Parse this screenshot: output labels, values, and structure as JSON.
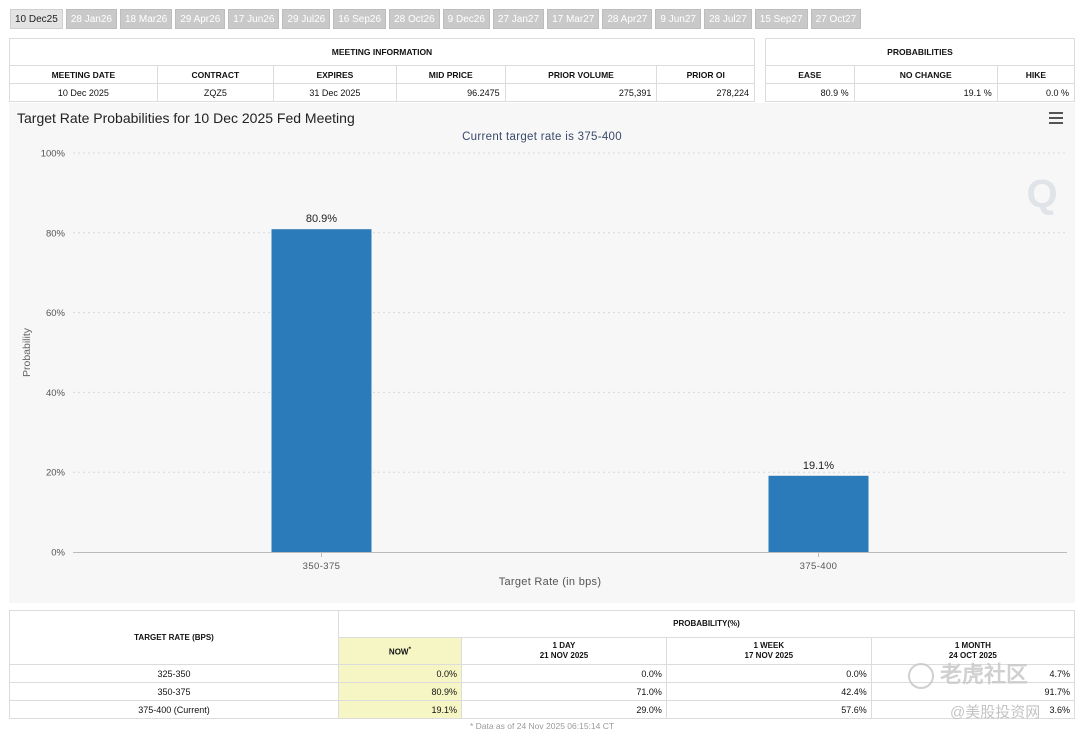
{
  "tabs": [
    "10 Dec25",
    "28 Jan26",
    "18 Mar26",
    "29 Apr26",
    "17 Jun26",
    "29 Jul26",
    "16 Sep26",
    "28 Oct26",
    "9 Dec26",
    "27 Jan27",
    "17 Mar27",
    "28 Apr27",
    "9 Jun27",
    "28 Jul27",
    "15 Sep27",
    "27 Oct27"
  ],
  "active_tab": 0,
  "meeting_info": {
    "caption": "MEETING INFORMATION",
    "headers": [
      "MEETING DATE",
      "CONTRACT",
      "EXPIRES",
      "MID PRICE",
      "PRIOR VOLUME",
      "PRIOR OI"
    ],
    "row": [
      "10 Dec 2025",
      "ZQZ5",
      "31 Dec 2025",
      "96.2475",
      "275,391",
      "278,224"
    ]
  },
  "probabilities": {
    "caption": "PROBABILITIES",
    "headers": [
      "EASE",
      "NO CHANGE",
      "HIKE"
    ],
    "row": [
      "80.9 %",
      "19.1 %",
      "0.0 %"
    ]
  },
  "chart_header": {
    "title": "Target Rate Probabilities for 10 Dec 2025 Fed Meeting",
    "subtitle_prefix": "Current target rate is ",
    "subtitle_value": "375-400"
  },
  "chart_data": {
    "type": "bar",
    "title": "Target Rate Probabilities for 10 Dec 2025 Fed Meeting",
    "subtitle": "Current target rate is 375-400",
    "categories": [
      "350-375",
      "375-400"
    ],
    "values": [
      80.9,
      19.1
    ],
    "data_labels": [
      "80.9%",
      "19.1%"
    ],
    "xlabel": "Target Rate (in bps)",
    "ylabel": "Probability",
    "ylim": [
      0,
      100
    ],
    "yticks": [
      0,
      20,
      40,
      60,
      80,
      100
    ],
    "ytick_labels": [
      "0%",
      "20%",
      "40%",
      "60%",
      "80%",
      "100%"
    ],
    "bar_color": "#2b7bba",
    "grid": true,
    "legend": "none"
  },
  "bottom_table": {
    "target_header": "TARGET RATE (BPS)",
    "prob_header": "PROBABILITY(%)",
    "col_now": "NOW",
    "col_now_mark": "*",
    "cols": [
      {
        "label": "1 DAY",
        "date": "21 NOV 2025"
      },
      {
        "label": "1 WEEK",
        "date": "17 NOV 2025"
      },
      {
        "label": "1 MONTH",
        "date": "24 OCT 2025"
      }
    ],
    "rows": [
      [
        "325-350",
        "0.0%",
        "0.0%",
        "0.0%",
        "4.7%"
      ],
      [
        "350-375",
        "80.9%",
        "71.0%",
        "42.4%",
        "91.7%"
      ],
      [
        "375-400 (Current)",
        "19.1%",
        "29.0%",
        "57.6%",
        "3.6%"
      ]
    ],
    "note": "* Data as of 24 Nov 2025 06:15:14 CT"
  },
  "watermark": {
    "line1": "老虎社区",
    "line2": "@美股投资网"
  }
}
